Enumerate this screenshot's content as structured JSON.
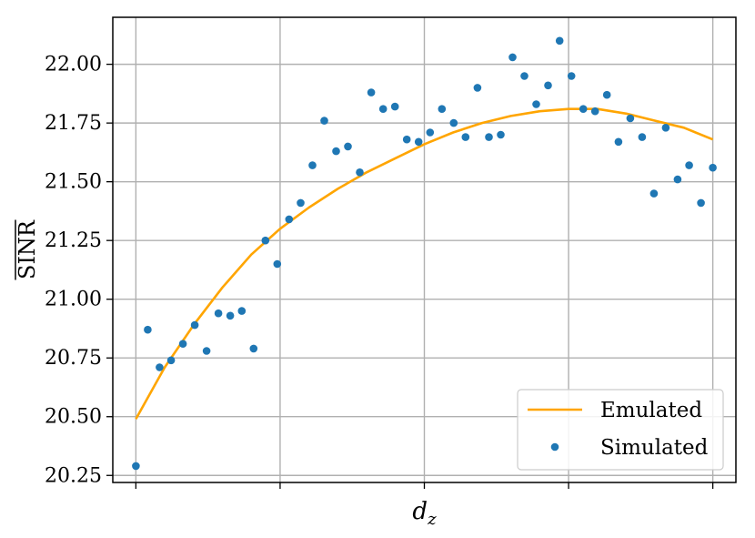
{
  "chart_data": {
    "type": "line",
    "xlabel": "d",
    "xlabel_sub": "z",
    "ylabel": "SINR",
    "ylabel_overline": true,
    "ylim": [
      20.22,
      22.2
    ],
    "xlim": [
      -0.08,
      2.08
    ],
    "yticks": [
      20.25,
      20.5,
      20.75,
      21.0,
      21.25,
      21.5,
      21.75,
      22.0
    ],
    "ytick_labels": [
      "20.25",
      "20.50",
      "20.75",
      "21.00",
      "21.25",
      "21.50",
      "21.75",
      "22.00"
    ],
    "xticks": [
      0,
      0.5,
      1,
      1.5,
      2
    ],
    "xtick_labels": [
      "",
      "",
      "",
      "",
      ""
    ],
    "grid": true,
    "legend_position": "lower-right",
    "colors": {
      "emulated": "#ffa500",
      "simulated": "#1f77b4"
    },
    "series": [
      {
        "name": "Emulated",
        "kind": "line",
        "x": [
          0,
          0.1,
          0.2,
          0.3,
          0.4,
          0.5,
          0.6,
          0.7,
          0.8,
          0.9,
          1.0,
          1.1,
          1.2,
          1.3,
          1.4,
          1.5,
          1.6,
          1.7,
          1.8,
          1.9,
          2.0
        ],
        "y": [
          20.49,
          20.71,
          20.89,
          21.05,
          21.19,
          21.3,
          21.39,
          21.47,
          21.54,
          21.6,
          21.66,
          21.71,
          21.75,
          21.78,
          21.8,
          21.81,
          21.81,
          21.79,
          21.76,
          21.73,
          21.68
        ]
      },
      {
        "name": "Simulated",
        "kind": "scatter",
        "x": [
          0,
          0.041,
          0.082,
          0.122,
          0.163,
          0.204,
          0.245,
          0.286,
          0.327,
          0.367,
          0.408,
          0.449,
          0.49,
          0.531,
          0.571,
          0.612,
          0.653,
          0.694,
          0.735,
          0.776,
          0.816,
          0.857,
          0.898,
          0.939,
          0.98,
          1.02,
          1.061,
          1.102,
          1.143,
          1.184,
          1.224,
          1.265,
          1.306,
          1.347,
          1.388,
          1.429,
          1.469,
          1.51,
          1.551,
          1.592,
          1.633,
          1.673,
          1.714,
          1.755,
          1.796,
          1.837,
          1.878,
          1.918,
          1.959,
          2.0
        ],
        "y": [
          20.29,
          20.87,
          20.71,
          20.74,
          20.81,
          20.89,
          20.78,
          20.94,
          20.93,
          20.95,
          20.79,
          21.25,
          21.15,
          21.34,
          21.41,
          21.57,
          21.76,
          21.63,
          21.65,
          21.54,
          21.88,
          21.81,
          21.82,
          21.68,
          21.67,
          21.71,
          21.81,
          21.75,
          21.69,
          21.9,
          21.69,
          21.7,
          22.03,
          21.95,
          21.83,
          21.91,
          22.1,
          21.95,
          21.81,
          21.8,
          21.87,
          21.67,
          21.77,
          21.69,
          21.45,
          21.73,
          21.51,
          21.57,
          21.41,
          21.56
        ]
      }
    ]
  }
}
